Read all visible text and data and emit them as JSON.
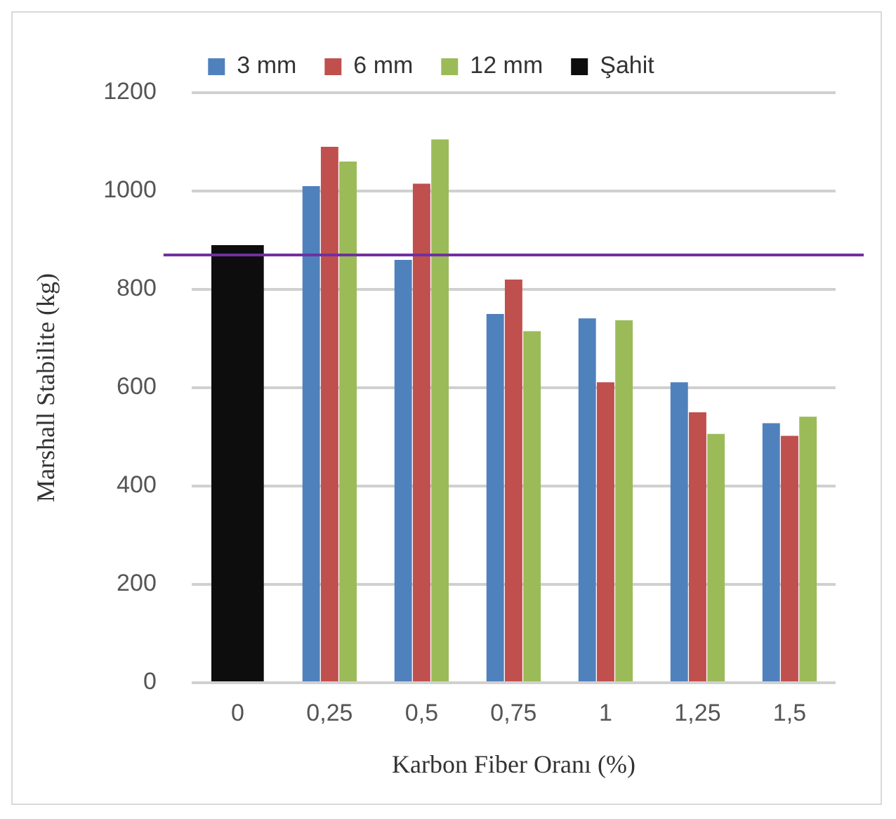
{
  "chart_data": {
    "type": "bar",
    "xlabel": "Karbon Fiber Oranı (%)",
    "ylabel": "Marshall Stabilite (kg)",
    "categories": [
      "0",
      "0,25",
      "0,5",
      "0,75",
      "1",
      "1,25",
      "1,5"
    ],
    "series": [
      {
        "name": "3 mm",
        "color": "#4f81bd",
        "values": [
          null,
          1010,
          860,
          750,
          741,
          611,
          528
        ]
      },
      {
        "name": "6 mm",
        "color": "#c0504d",
        "values": [
          null,
          1090,
          1015,
          820,
          611,
          550,
          502
        ]
      },
      {
        "name": "12 mm",
        "color": "#9bbb59",
        "values": [
          null,
          1060,
          1105,
          715,
          737,
          506,
          541
        ]
      },
      {
        "name": "Şahit",
        "color": "#0d0d0d",
        "values": [
          890,
          null,
          null,
          null,
          null,
          null,
          null
        ]
      }
    ],
    "ylim": [
      0,
      1200
    ],
    "yticks": [
      0,
      200,
      400,
      600,
      800,
      1000,
      1200
    ],
    "grid": "y",
    "legend": "top",
    "ref_lines": [
      {
        "axis": "y",
        "value": 870,
        "color": "#7030a0"
      }
    ]
  }
}
